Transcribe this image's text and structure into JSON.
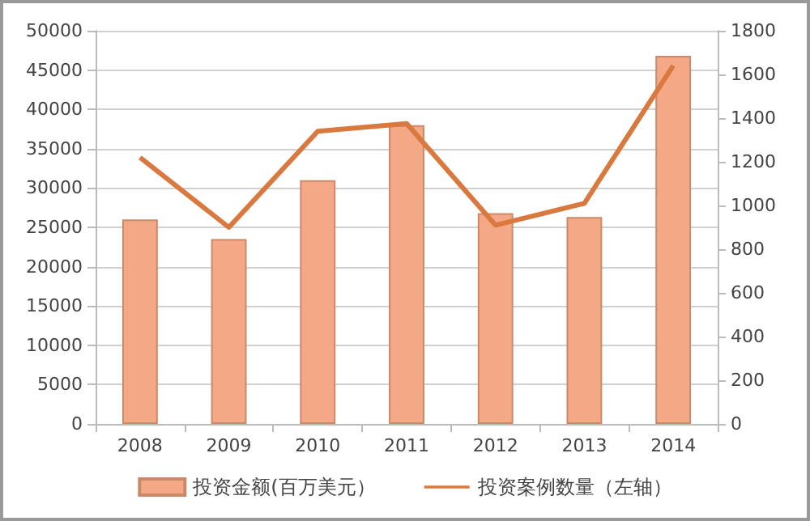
{
  "chart_data": {
    "type": "bar",
    "categories": [
      "2008",
      "2009",
      "2010",
      "2011",
      "2012",
      "2013",
      "2014"
    ],
    "series": [
      {
        "name": "投资金额(百万美元）",
        "color": "#f4a886",
        "values": [
          26000,
          23500,
          31000,
          38000,
          26800,
          26300,
          46800
        ]
      },
      {
        "name": "投资案例数量（左轴）",
        "type": "line",
        "axis": "y2",
        "color": "#d9793f",
        "values": [
          1220,
          900,
          1340,
          1375,
          910,
          1010,
          1640
        ]
      }
    ],
    "ylim": [
      0,
      50000
    ],
    "yticks": [
      0,
      5000,
      10000,
      15000,
      20000,
      25000,
      30000,
      35000,
      40000,
      45000,
      50000
    ],
    "y2lim": [
      0,
      1800
    ],
    "y2ticks": [
      0,
      200,
      400,
      600,
      800,
      1000,
      1200,
      1400,
      1600,
      1800
    ],
    "grid": "y",
    "legend": "bottom",
    "marker": "none"
  }
}
